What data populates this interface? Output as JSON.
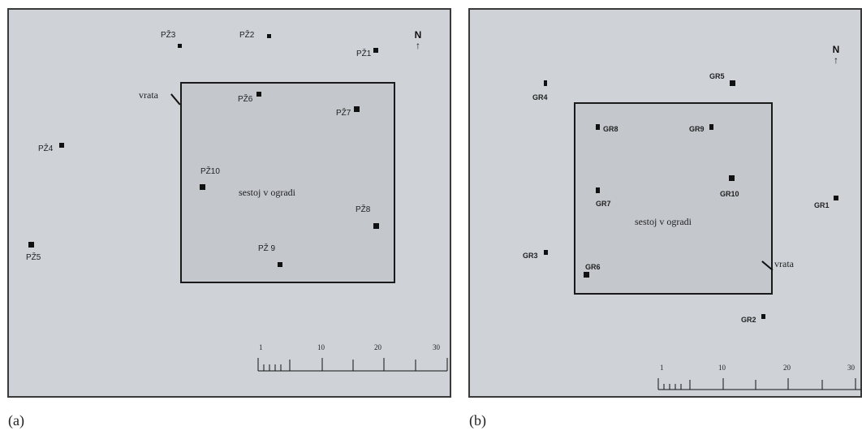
{
  "panel_a": {
    "caption": "(a)",
    "enclosure_label": "sestoj v ogradi",
    "gate_label": "vrata",
    "north": "N",
    "north_arrow": "↑",
    "scale_ticks": [
      "1",
      "10",
      "20",
      "30"
    ],
    "plots": {
      "pz1": "PŽ1",
      "pz2": "PŽ2",
      "pz3": "PŽ3",
      "pz4": "PŽ4",
      "pz5": "PŽ5",
      "pz6": "PŽ6",
      "pz7": "PŽ7",
      "pz8": "PŽ8",
      "pz9": "PŽ 9",
      "pz10": "PŽ10"
    }
  },
  "panel_b": {
    "caption": "(b)",
    "enclosure_label": "sestoj v ogradi",
    "gate_label": "vrata",
    "north": "N",
    "north_arrow": "↑",
    "scale_ticks": [
      "1",
      "10",
      "20",
      "30"
    ],
    "plots": {
      "gr1": "GR1",
      "gr2": "GR2",
      "gr3": "GR3",
      "gr4": "GR4",
      "gr5": "GR5",
      "gr6": "GR6",
      "gr7": "GR7",
      "gr8": "GR8",
      "gr9": "GR9",
      "gr10": "GR10"
    }
  }
}
